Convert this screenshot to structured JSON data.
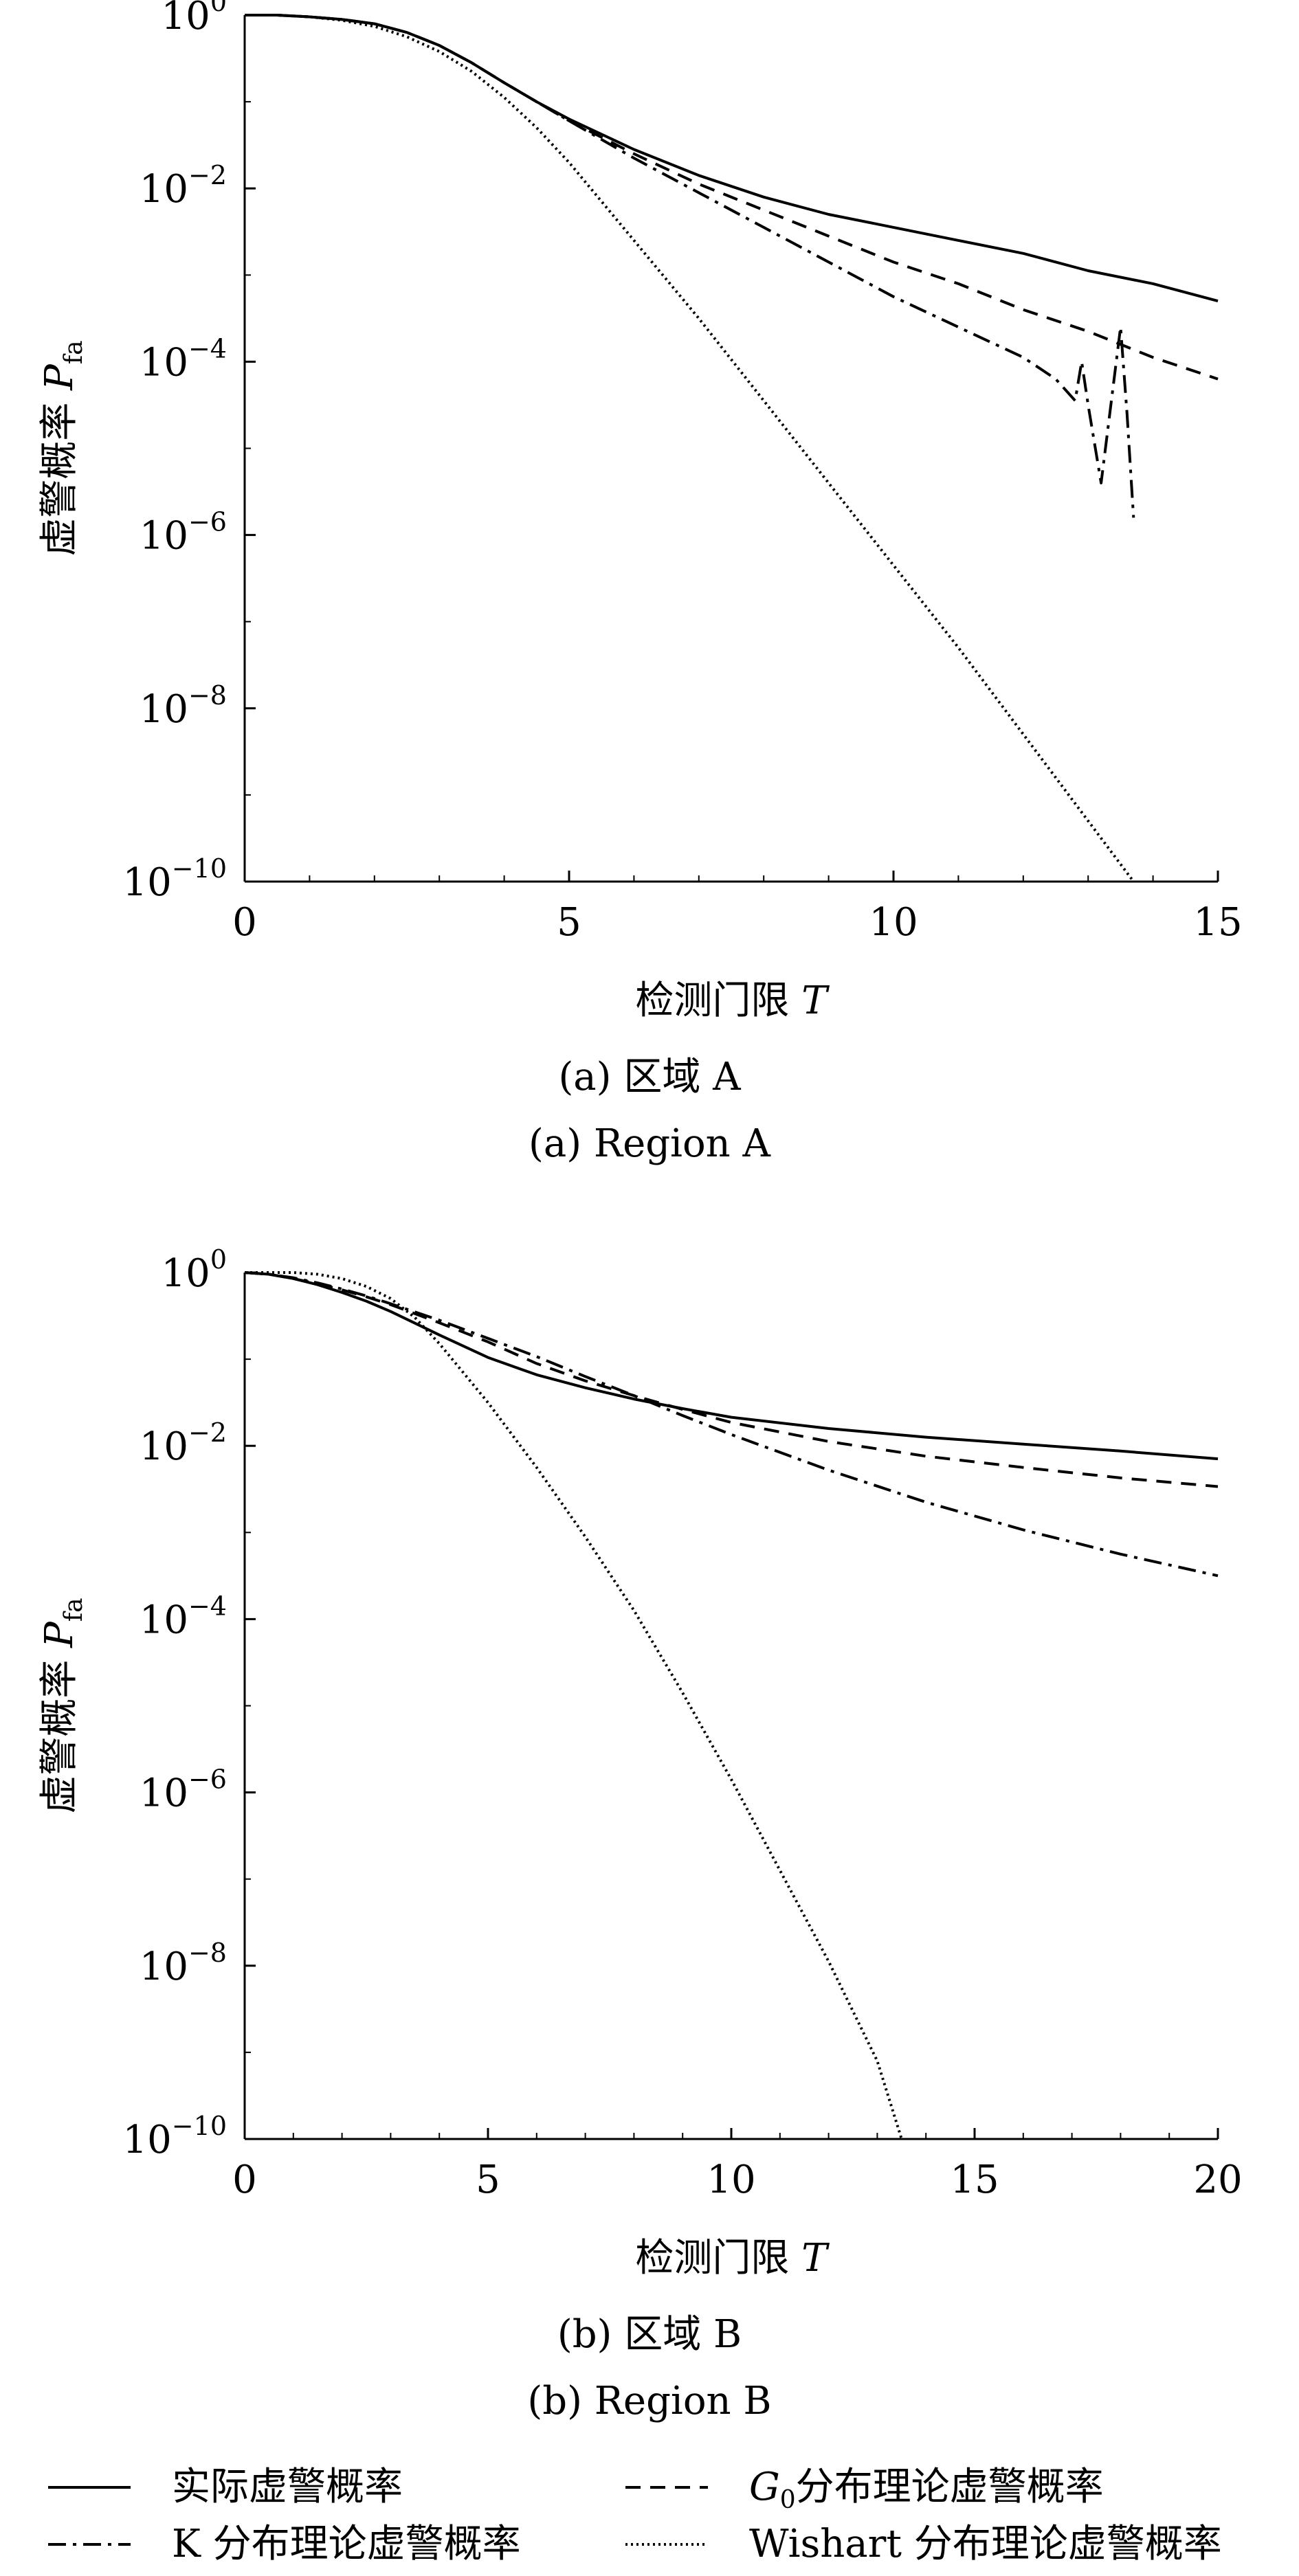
{
  "chart_data": [
    {
      "type": "line",
      "title": "",
      "xlabel": "检测门限 T",
      "ylabel": "虚警概率 P_fa",
      "xlim": [
        0,
        15
      ],
      "ylim_log10": [
        -10,
        0
      ],
      "yscale": "log",
      "xticks": [
        "0",
        "5",
        "10",
        "15"
      ],
      "yticks": [
        "10^0",
        "10^-2",
        "10^-4",
        "10^-6",
        "10^-8",
        "10^-10"
      ],
      "grid": false,
      "series": [
        {
          "name": "实际虚警概率",
          "style": "solid",
          "x": [
            0,
            0.5,
            1,
            1.5,
            2,
            2.5,
            3,
            3.5,
            4,
            4.5,
            5,
            6,
            7,
            8,
            9,
            10,
            11,
            12,
            13,
            14,
            15
          ],
          "log10_y": [
            0,
            0,
            -0.02,
            -0.05,
            -0.1,
            -0.2,
            -0.35,
            -0.55,
            -0.78,
            -1.0,
            -1.2,
            -1.55,
            -1.85,
            -2.1,
            -2.3,
            -2.45,
            -2.6,
            -2.75,
            -2.95,
            -3.1,
            -3.3
          ]
        },
        {
          "name": "G0分布理论虚警概率",
          "style": "dashed",
          "x": [
            0,
            0.5,
            1,
            1.5,
            2,
            2.5,
            3,
            3.5,
            4,
            4.5,
            5,
            6,
            7,
            8,
            9,
            10,
            11,
            12,
            13,
            14,
            15
          ],
          "log10_y": [
            0,
            0,
            -0.02,
            -0.05,
            -0.1,
            -0.2,
            -0.35,
            -0.55,
            -0.78,
            -1.0,
            -1.22,
            -1.6,
            -1.95,
            -2.25,
            -2.55,
            -2.85,
            -3.1,
            -3.4,
            -3.65,
            -3.95,
            -4.2
          ]
        },
        {
          "name": "K 分布理论虚警概率",
          "style": "dashdot",
          "x": [
            0,
            0.5,
            1,
            1.5,
            2,
            2.5,
            3,
            3.5,
            4,
            4.5,
            5,
            6,
            7,
            8,
            9,
            10,
            11,
            12,
            12.5,
            12.8,
            12.9,
            13.0,
            13.2,
            13.5,
            13.6,
            13.7
          ],
          "log10_y": [
            0,
            0,
            -0.02,
            -0.05,
            -0.1,
            -0.2,
            -0.35,
            -0.55,
            -0.78,
            -1.0,
            -1.22,
            -1.65,
            -2.05,
            -2.45,
            -2.85,
            -3.25,
            -3.6,
            -3.95,
            -4.2,
            -4.45,
            -4.0,
            -4.5,
            -5.4,
            -3.6,
            -4.6,
            -5.8
          ]
        },
        {
          "name": "Wishart 分布理论虚警概率",
          "style": "dotted",
          "x": [
            0,
            0.5,
            1,
            1.5,
            2,
            2.5,
            3,
            3.5,
            4,
            4.5,
            5,
            6,
            7,
            8,
            9,
            10,
            11,
            12,
            13,
            13.7
          ],
          "log10_y": [
            0,
            0,
            -0.02,
            -0.06,
            -0.13,
            -0.25,
            -0.42,
            -0.65,
            -0.95,
            -1.3,
            -1.7,
            -2.6,
            -3.5,
            -4.45,
            -5.4,
            -6.35,
            -7.3,
            -8.3,
            -9.3,
            -10
          ]
        }
      ]
    },
    {
      "type": "line",
      "title": "",
      "xlabel": "检测门限 T",
      "ylabel": "虚警概率 P_fa",
      "xlim": [
        0,
        20
      ],
      "ylim_log10": [
        -10,
        0
      ],
      "yscale": "log",
      "xticks": [
        "0",
        "5",
        "10",
        "15",
        "20"
      ],
      "yticks": [
        "10^0",
        "10^-2",
        "10^-4",
        "10^-6",
        "10^-8",
        "10^-10"
      ],
      "grid": false,
      "series": [
        {
          "name": "实际虚警概率",
          "style": "solid",
          "x": [
            0,
            0.5,
            1,
            1.5,
            2,
            2.5,
            3,
            4,
            5,
            6,
            7,
            8,
            9,
            10,
            12,
            14,
            16,
            18,
            20
          ],
          "log10_y": [
            0,
            -0.02,
            -0.07,
            -0.14,
            -0.23,
            -0.33,
            -0.45,
            -0.72,
            -0.98,
            -1.18,
            -1.33,
            -1.46,
            -1.57,
            -1.67,
            -1.8,
            -1.9,
            -1.98,
            -2.06,
            -2.15
          ]
        },
        {
          "name": "G0分布理论虚警概率",
          "style": "dashed",
          "x": [
            0,
            0.5,
            1,
            1.5,
            2,
            2.5,
            3,
            4,
            5,
            6,
            7,
            8,
            9,
            10,
            12,
            14,
            16,
            18,
            20
          ],
          "log10_y": [
            0,
            -0.02,
            -0.07,
            -0.13,
            -0.2,
            -0.28,
            -0.37,
            -0.58,
            -0.8,
            -1.05,
            -1.25,
            -1.42,
            -1.58,
            -1.73,
            -1.95,
            -2.12,
            -2.25,
            -2.37,
            -2.47
          ]
        },
        {
          "name": "K 分布理论虚警概率",
          "style": "dashdot",
          "x": [
            0,
            0.5,
            1,
            1.5,
            2,
            2.5,
            3,
            4,
            5,
            6,
            7,
            8,
            9,
            10,
            12,
            14,
            16,
            18,
            20
          ],
          "log10_y": [
            0,
            -0.02,
            -0.06,
            -0.12,
            -0.19,
            -0.27,
            -0.36,
            -0.55,
            -0.76,
            -0.97,
            -1.2,
            -1.42,
            -1.65,
            -1.87,
            -2.28,
            -2.65,
            -2.97,
            -3.25,
            -3.5
          ]
        },
        {
          "name": "Wishart 分布理论虚警概率",
          "style": "dotted",
          "x": [
            0,
            0.5,
            1,
            1.5,
            2,
            2.5,
            3,
            3.5,
            4,
            5,
            6,
            7,
            8,
            9,
            10,
            11,
            12,
            13,
            13.5
          ],
          "log10_y": [
            0,
            0,
            0,
            -0.02,
            -0.07,
            -0.16,
            -0.3,
            -0.52,
            -0.82,
            -1.5,
            -2.25,
            -3.05,
            -3.9,
            -4.85,
            -5.85,
            -6.9,
            -7.95,
            -9.1,
            -10
          ]
        }
      ]
    }
  ],
  "captions": {
    "a_cn": "(a) 区域 A",
    "a_en": "(a) Region A",
    "b_cn": "(b) 区域 B",
    "b_en": "(b) Region B"
  },
  "legend": [
    {
      "label": "实际虚警概率",
      "style": "solid"
    },
    {
      "label": "G0分布理论虚警概率",
      "style": "dashed",
      "label_prefix": "G",
      "label_sub": "0",
      "label_rest": "分布理论虚警概率"
    },
    {
      "label": "K 分布理论虚警概率",
      "style": "dashdot"
    },
    {
      "label": "Wishart 分布理论虚警概率",
      "style": "dotted"
    }
  ]
}
